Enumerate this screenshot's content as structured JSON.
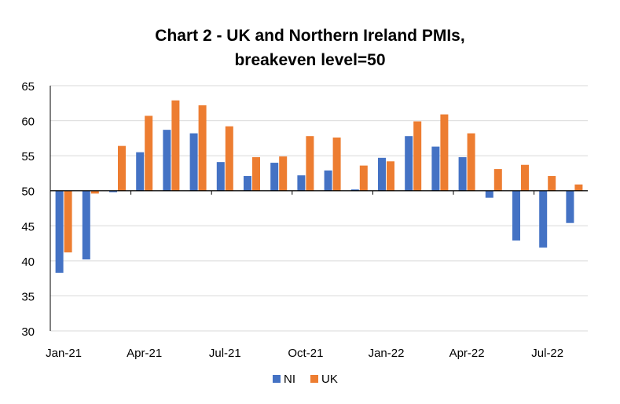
{
  "chart_data": {
    "type": "bar",
    "title_lines": [
      "Chart 2 - UK and Northern Ireland PMIs,",
      "breakeven level=50"
    ],
    "xlabel": "",
    "ylabel": "",
    "ylim": [
      30,
      65
    ],
    "yticks": [
      30,
      35,
      40,
      45,
      50,
      55,
      60,
      65
    ],
    "baseline": 50,
    "grid": true,
    "legend_position": "bottom-center",
    "categories": [
      "Jan-21",
      "Feb-21",
      "Mar-21",
      "Apr-21",
      "May-21",
      "Jun-21",
      "Jul-21",
      "Aug-21",
      "Sep-21",
      "Oct-21",
      "Nov-21",
      "Dec-21",
      "Jan-22",
      "Feb-22",
      "Mar-22",
      "Apr-22",
      "May-22",
      "Jun-22",
      "Jul-22",
      "Aug-22"
    ],
    "xtick_labels": [
      "Jan-21",
      "Apr-21",
      "Jul-21",
      "Oct-21",
      "Jan-22",
      "Apr-22",
      "Jul-22"
    ],
    "series": [
      {
        "name": "NI",
        "color": "#4472C4",
        "values": [
          38.3,
          40.2,
          49.8,
          55.5,
          58.7,
          58.2,
          54.1,
          52.1,
          54.0,
          52.2,
          52.9,
          50.2,
          54.7,
          57.8,
          56.3,
          54.8,
          49.0,
          42.9,
          41.9,
          45.4
        ]
      },
      {
        "name": "UK",
        "color": "#ED7D31",
        "values": [
          41.2,
          49.6,
          56.4,
          60.7,
          62.9,
          62.2,
          59.2,
          54.8,
          54.9,
          57.8,
          57.6,
          53.6,
          54.2,
          59.9,
          60.9,
          58.2,
          53.1,
          53.7,
          52.1,
          50.9
        ]
      }
    ]
  }
}
